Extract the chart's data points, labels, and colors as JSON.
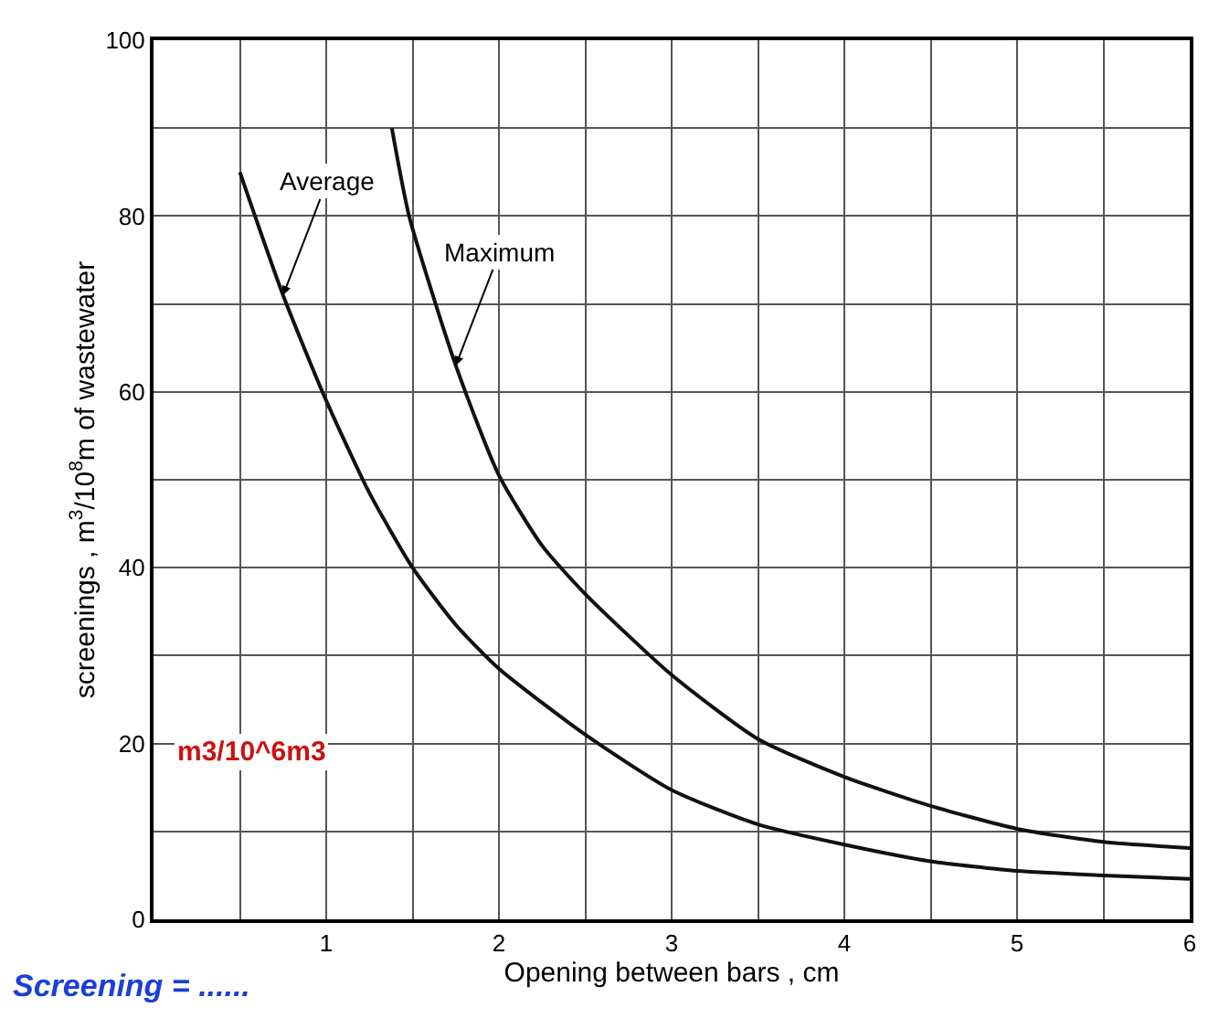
{
  "chart_data": {
    "type": "line",
    "xlabel": "Opening between bars , cm",
    "ylabel": "screenings , m$^{3}$/10$^{8}$m of wastewater",
    "xlim": [
      0,
      6
    ],
    "xticks": [
      {
        "value": 0.5,
        "label": null
      },
      1,
      {
        "value": 1.5,
        "label": null
      },
      2,
      {
        "value": 2.5,
        "label": null
      },
      3,
      {
        "value": 3.5,
        "label": null
      },
      4,
      {
        "value": 4.5,
        "label": null
      },
      5,
      {
        "value": 5.5,
        "label": null
      },
      6
    ],
    "ylim": [
      0,
      100
    ],
    "yticks": [
      0,
      {
        "value": 10,
        "label": null
      },
      20,
      {
        "value": 30,
        "label": null
      },
      40,
      {
        "value": 50,
        "label": null
      },
      60,
      {
        "value": 70,
        "label": null
      },
      80,
      {
        "value": 90,
        "label": null
      },
      100
    ],
    "grid": true,
    "marker": "none",
    "line_style": "solid",
    "series": [
      {
        "color": "#111111",
        "x": [
          0.5,
          0.75,
          1,
          1.25,
          1.5,
          1.75,
          2,
          2.5,
          3,
          3.5,
          4,
          4.5,
          5,
          5.5,
          6
        ],
        "values": [
          85,
          71,
          59,
          48.5,
          40,
          33.5,
          28.5,
          21,
          14.7,
          10.8,
          8.5,
          6.6,
          5.5,
          5,
          4.6
        ]
      },
      {
        "color": "#111111",
        "x": [
          1.38,
          1.48,
          1.75,
          2,
          2.25,
          2.5,
          3,
          3.5,
          4,
          4.5,
          5,
          5.5,
          6
        ],
        "values": [
          90,
          80,
          63,
          50.5,
          42.5,
          37,
          27.8,
          20.5,
          16.2,
          12.9,
          10.3,
          8.8,
          8.1
        ]
      }
    ],
    "annotations": [
      {
        "text": "Average",
        "x": 0.75,
        "y": 71
      },
      {
        "text": "Maximum",
        "x": 1.75,
        "y": 63
      },
      "m3/10^6m3",
      "Screening = ......"
    ]
  }
}
